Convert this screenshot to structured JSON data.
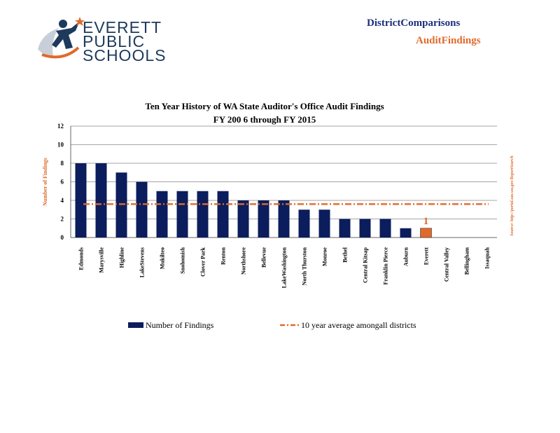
{
  "logo": {
    "line1": "EVERETT",
    "line2": "PUBLIC",
    "line3": "SCHOOLS"
  },
  "header": {
    "title": "DistrictComparisons",
    "subtitle": "AuditFindings"
  },
  "chart_data": {
    "type": "bar",
    "title": "Ten  Year  History    of  WA  State    Auditor's     Office     Audit   Findings",
    "subtitle": "FY  200  6  through     FY  2015",
    "ylabel": "Number     of  Findings",
    "source_note": "Source:          http://portal.sao.wa.gov/ReportSearch",
    "ylim": [
      0,
      12
    ],
    "yticks": [
      "0",
      "2",
      "4",
      "6",
      "8",
      "10",
      "12"
    ],
    "grid": true,
    "legend_position": "bottom",
    "categories": [
      "Edmonds",
      "Marysville",
      "Highline",
      "LakeStevens",
      "Mukilteo",
      "Snohomish",
      "Clover   Park",
      "Renton",
      "Northshore",
      "Bellevue",
      "LakeWashington",
      "North   Thurston",
      "Monroe",
      "Bethel",
      "Central   Kitsap",
      "Franklin   Pierce",
      "Auburn",
      "Everett",
      "Central   Valley",
      "Bellingham",
      "Issaquah"
    ],
    "series": [
      {
        "name": "Number    of Findings",
        "values": [
          8,
          8,
          7,
          6,
          5,
          5,
          5,
          5,
          4,
          4,
          4,
          3,
          3,
          2,
          2,
          2,
          1,
          1,
          0,
          0,
          0
        ],
        "color": "#0b1d5c",
        "highlight_index": 17,
        "highlight_color": "#e06a2b"
      },
      {
        "name": "10  year  average     amongall     districts",
        "type": "line",
        "value": 3.6,
        "color": "#e06a2b"
      }
    ],
    "annotation": {
      "category": "Everett",
      "text": "1",
      "color": "#e06a2b"
    }
  }
}
